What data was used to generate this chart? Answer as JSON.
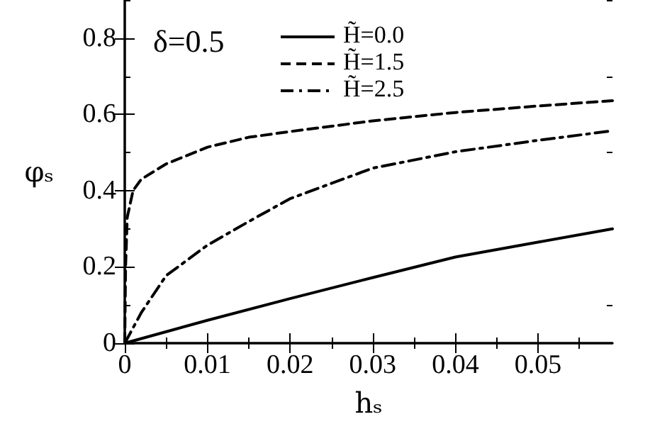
{
  "chart_data": {
    "type": "line",
    "xlabel": "hₛ",
    "ylabel": "φₛ",
    "annotations": [
      "δ=0.5"
    ],
    "xlim": [
      0,
      0.059
    ],
    "ylim": [
      0,
      0.9
    ],
    "xticks": [
      0,
      0.01,
      0.02,
      0.03,
      0.04,
      0.05
    ],
    "yticks": [
      0,
      0.2,
      0.4,
      0.6,
      0.8
    ],
    "grid": false,
    "legend": "top",
    "marker": "none",
    "series": [
      {
        "name": "H̃=0.0",
        "color": "#000000",
        "line_style": "solid",
        "x": [
          0,
          0.01,
          0.02,
          0.03,
          0.04,
          0.05,
          0.059
        ],
        "values": [
          0,
          0.06,
          0.117,
          0.172,
          0.226,
          0.265,
          0.3
        ]
      },
      {
        "name": "H̃=1.5",
        "color": "#000000",
        "line_style": "dashed",
        "x": [
          0,
          0.0001,
          0.0003,
          0.001,
          0.002,
          0.005,
          0.01,
          0.015,
          0.02,
          0.03,
          0.04,
          0.05,
          0.059
        ],
        "values": [
          0,
          0.2,
          0.33,
          0.4,
          0.43,
          0.47,
          0.514,
          0.54,
          0.555,
          0.583,
          0.605,
          0.622,
          0.636
        ]
      },
      {
        "name": "H̃=2.5",
        "color": "#000000",
        "line_style": "dashdot",
        "x": [
          0,
          0.002,
          0.005,
          0.01,
          0.015,
          0.02,
          0.03,
          0.04,
          0.05,
          0.059
        ],
        "values": [
          0,
          0.08,
          0.177,
          0.257,
          0.319,
          0.379,
          0.459,
          0.502,
          0.532,
          0.557
        ]
      }
    ]
  }
}
